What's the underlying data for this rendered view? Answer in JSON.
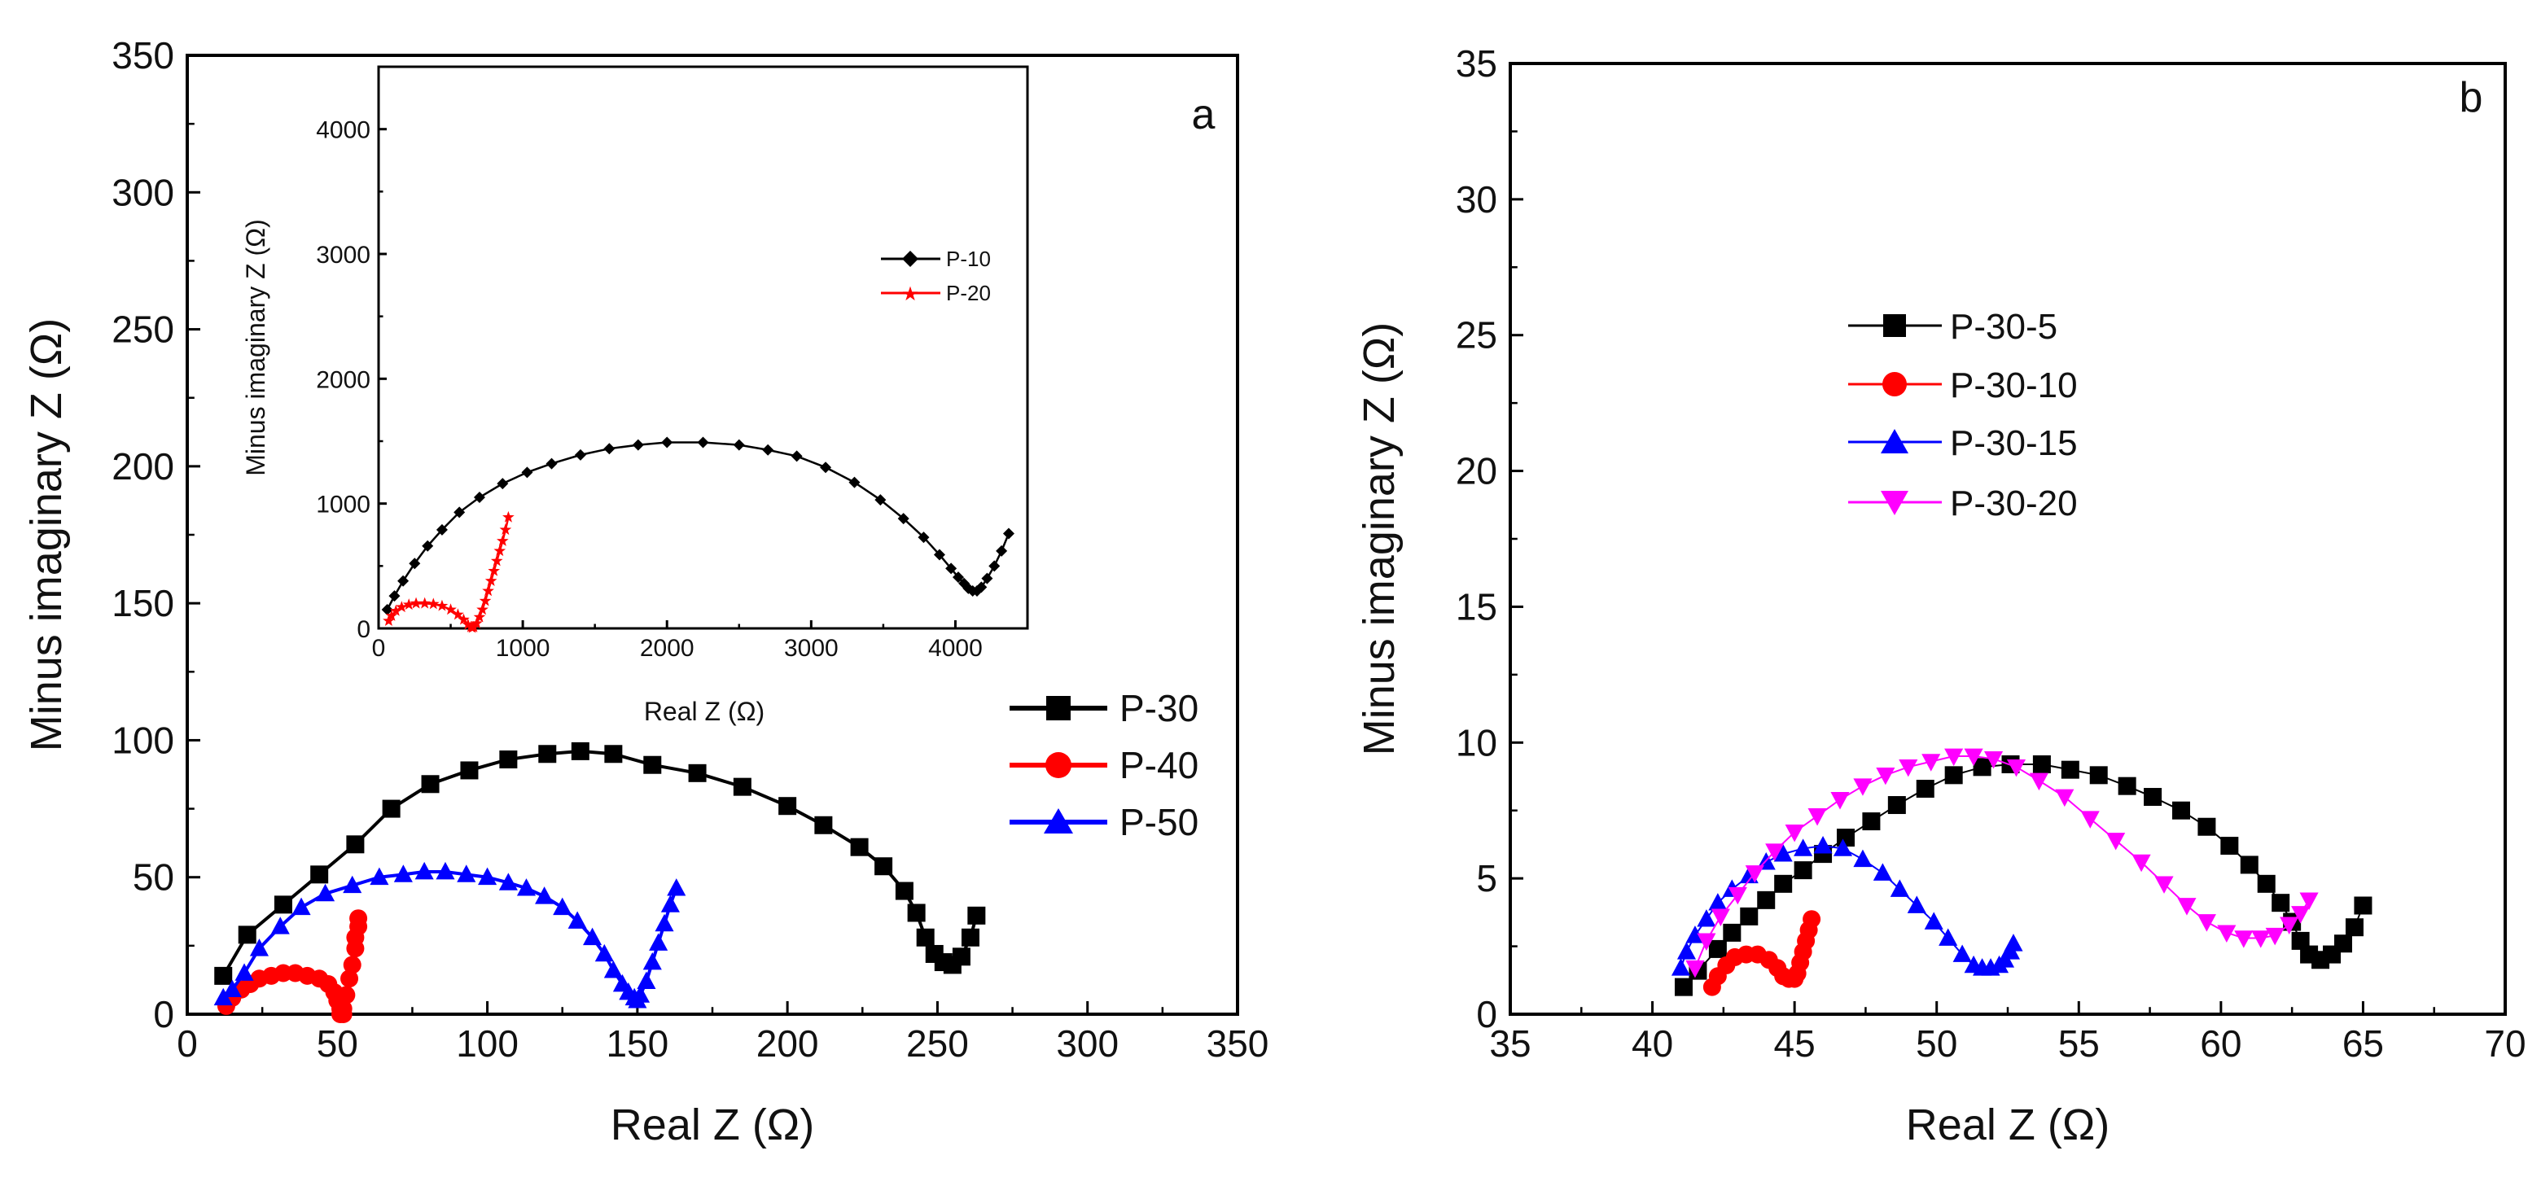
{
  "colors": {
    "black": "#000000",
    "red": "#ff0000",
    "blue": "#0000ff",
    "magenta": "#ff00ff"
  },
  "chart_data": [
    {
      "id": "a",
      "type": "scatter",
      "panel_label": "a",
      "xlabel": "Real Z (Ω)",
      "ylabel": "Minus imaginary Z (Ω)",
      "xlim": [
        0,
        350
      ],
      "ylim": [
        0,
        350
      ],
      "x_ticks": [
        "0",
        "50",
        "100",
        "150",
        "200",
        "250",
        "300",
        "350"
      ],
      "y_ticks": [
        "0",
        "50",
        "100",
        "150",
        "200",
        "250",
        "300",
        "350"
      ],
      "legend_position": "right-middle",
      "series": [
        {
          "name": "P-30",
          "color": "#000000",
          "marker": "square",
          "x": [
            12,
            20,
            32,
            44,
            56,
            68,
            81,
            94,
            107,
            120,
            131,
            142,
            155,
            170,
            185,
            200,
            212,
            224,
            232,
            239,
            243,
            246,
            249,
            252,
            255,
            258,
            261,
            263
          ],
          "y": [
            14,
            29,
            40,
            51,
            62,
            75,
            84,
            89,
            93,
            95,
            96,
            95,
            91,
            88,
            83,
            76,
            69,
            61,
            54,
            45,
            37,
            28,
            22,
            19,
            18,
            21,
            28,
            36
          ]
        },
        {
          "name": "P-40",
          "color": "#ff0000",
          "marker": "circle",
          "x": [
            13,
            15,
            18,
            21,
            24,
            28,
            32,
            36,
            40,
            44,
            47,
            49,
            50,
            51,
            51,
            52,
            52,
            53,
            54,
            55,
            56,
            56,
            57,
            57
          ],
          "y": [
            3,
            6,
            9,
            11,
            13,
            14,
            15,
            15,
            14,
            13,
            11,
            8,
            5,
            2,
            0,
            0,
            2,
            7,
            13,
            18,
            24,
            28,
            32,
            35
          ]
        },
        {
          "name": "P-50",
          "color": "#0000ff",
          "marker": "triangle-up",
          "x": [
            12,
            15,
            19,
            24,
            31,
            38,
            46,
            55,
            64,
            72,
            79,
            86,
            93,
            100,
            107,
            113,
            119,
            125,
            130,
            135,
            139,
            142,
            145,
            147,
            149,
            150,
            151,
            153,
            155,
            157,
            159,
            161,
            163
          ],
          "y": [
            6,
            9,
            15,
            24,
            32,
            39,
            44,
            47,
            50,
            51,
            52,
            52,
            51,
            50,
            48,
            46,
            43,
            39,
            34,
            28,
            22,
            16,
            11,
            8,
            6,
            5,
            7,
            12,
            19,
            26,
            33,
            40,
            46
          ]
        }
      ]
    },
    {
      "id": "a-inset",
      "type": "line",
      "xlabel": "Real Z (Ω)",
      "ylabel": "Minus imaginary Z (Ω)",
      "xlim": [
        0,
        4500
      ],
      "ylim": [
        0,
        4500
      ],
      "x_ticks": [
        "0",
        "1000",
        "2000",
        "3000",
        "4000"
      ],
      "y_ticks": [
        "0",
        "1000",
        "2000",
        "3000",
        "4000"
      ],
      "legend_position": "right-upper",
      "series": [
        {
          "name": "P-10",
          "color": "#000000",
          "marker": "diamond",
          "x": [
            60,
            110,
            170,
            250,
            340,
            440,
            560,
            700,
            860,
            1030,
            1200,
            1400,
            1600,
            1800,
            2000,
            2250,
            2500,
            2700,
            2900,
            3100,
            3300,
            3480,
            3640,
            3780,
            3890,
            3970,
            4020,
            4060,
            4090,
            4120,
            4150,
            4180,
            4220,
            4270,
            4320,
            4370
          ],
          "y": [
            150,
            260,
            380,
            520,
            660,
            790,
            930,
            1050,
            1160,
            1250,
            1320,
            1390,
            1440,
            1470,
            1490,
            1490,
            1470,
            1430,
            1380,
            1290,
            1170,
            1030,
            880,
            730,
            590,
            480,
            410,
            360,
            320,
            300,
            300,
            330,
            400,
            500,
            620,
            760
          ]
        },
        {
          "name": "P-20",
          "color": "#ff0000",
          "marker": "star",
          "x": [
            70,
            90,
            120,
            160,
            210,
            260,
            320,
            380,
            440,
            500,
            550,
            590,
            620,
            640,
            650,
            660,
            680,
            700,
            720,
            740,
            760,
            780,
            800,
            820,
            840,
            860,
            880,
            900
          ],
          "y": [
            60,
            100,
            140,
            170,
            190,
            200,
            200,
            195,
            180,
            150,
            110,
            70,
            30,
            10,
            5,
            10,
            40,
            90,
            150,
            220,
            300,
            380,
            460,
            540,
            620,
            700,
            790,
            890
          ]
        }
      ]
    },
    {
      "id": "b",
      "type": "line",
      "panel_label": "b",
      "xlabel": "Real Z (Ω)",
      "ylabel": "Minus imaginary Z (Ω)",
      "xlim": [
        35,
        70
      ],
      "ylim": [
        0,
        35
      ],
      "x_ticks": [
        "35",
        "40",
        "45",
        "50",
        "55",
        "60",
        "65",
        "70"
      ],
      "y_ticks": [
        "0",
        "5",
        "10",
        "15",
        "20",
        "25",
        "30",
        "35"
      ],
      "legend_position": "center-left",
      "series": [
        {
          "name": "P-30-5",
          "color": "#000000",
          "marker": "square",
          "x": [
            41.1,
            41.6,
            42.3,
            42.8,
            43.4,
            44.0,
            44.6,
            45.3,
            46.0,
            46.8,
            47.7,
            48.6,
            49.6,
            50.6,
            51.6,
            52.6,
            53.7,
            54.7,
            55.7,
            56.7,
            57.6,
            58.6,
            59.5,
            60.3,
            61.0,
            61.6,
            62.1,
            62.5,
            62.8,
            63.1,
            63.5,
            63.9,
            64.3,
            64.7,
            65.0
          ],
          "y": [
            1.0,
            1.6,
            2.4,
            3.0,
            3.6,
            4.2,
            4.8,
            5.3,
            5.9,
            6.5,
            7.1,
            7.7,
            8.3,
            8.8,
            9.1,
            9.2,
            9.2,
            9.0,
            8.8,
            8.4,
            8.0,
            7.5,
            6.9,
            6.2,
            5.5,
            4.8,
            4.1,
            3.4,
            2.7,
            2.2,
            2.0,
            2.2,
            2.6,
            3.2,
            4.0
          ]
        },
        {
          "name": "P-30-10",
          "color": "#ff0000",
          "marker": "circle",
          "x": [
            42.1,
            42.3,
            42.6,
            42.9,
            43.3,
            43.7,
            44.1,
            44.4,
            44.6,
            44.8,
            45.0,
            45.1,
            45.2,
            45.3,
            45.4,
            45.5,
            45.6
          ],
          "y": [
            1.0,
            1.4,
            1.8,
            2.1,
            2.2,
            2.2,
            2.0,
            1.7,
            1.4,
            1.3,
            1.3,
            1.5,
            1.9,
            2.3,
            2.7,
            3.1,
            3.5
          ]
        },
        {
          "name": "P-30-15",
          "color": "#0000ff",
          "marker": "triangle-up",
          "x": [
            41.0,
            41.2,
            41.5,
            41.9,
            42.3,
            42.8,
            43.4,
            44.0,
            44.6,
            45.3,
            46.0,
            46.7,
            47.4,
            48.1,
            48.7,
            49.3,
            49.9,
            50.4,
            50.9,
            51.3,
            51.6,
            51.9,
            52.2,
            52.4,
            52.6,
            52.7
          ],
          "y": [
            1.7,
            2.3,
            2.9,
            3.5,
            4.1,
            4.6,
            5.1,
            5.6,
            5.9,
            6.1,
            6.2,
            6.1,
            5.7,
            5.2,
            4.6,
            4.0,
            3.4,
            2.8,
            2.2,
            1.8,
            1.7,
            1.7,
            1.8,
            2.0,
            2.3,
            2.6
          ]
        },
        {
          "name": "P-30-20",
          "color": "#ff00ff",
          "marker": "triangle-down",
          "x": [
            41.5,
            41.9,
            42.4,
            43.0,
            43.6,
            44.3,
            45.0,
            45.8,
            46.6,
            47.4,
            48.2,
            49.0,
            49.8,
            50.6,
            51.3,
            52.0,
            52.8,
            53.6,
            54.5,
            55.4,
            56.3,
            57.2,
            58.0,
            58.8,
            59.5,
            60.2,
            60.8,
            61.4,
            61.9,
            62.4,
            62.8,
            63.1
          ],
          "y": [
            1.7,
            2.7,
            3.6,
            4.4,
            5.2,
            6.0,
            6.7,
            7.3,
            7.9,
            8.4,
            8.8,
            9.1,
            9.3,
            9.5,
            9.5,
            9.4,
            9.1,
            8.6,
            8.0,
            7.2,
            6.4,
            5.6,
            4.8,
            4.0,
            3.4,
            3.0,
            2.8,
            2.8,
            2.9,
            3.3,
            3.7,
            4.2
          ]
        }
      ]
    }
  ]
}
